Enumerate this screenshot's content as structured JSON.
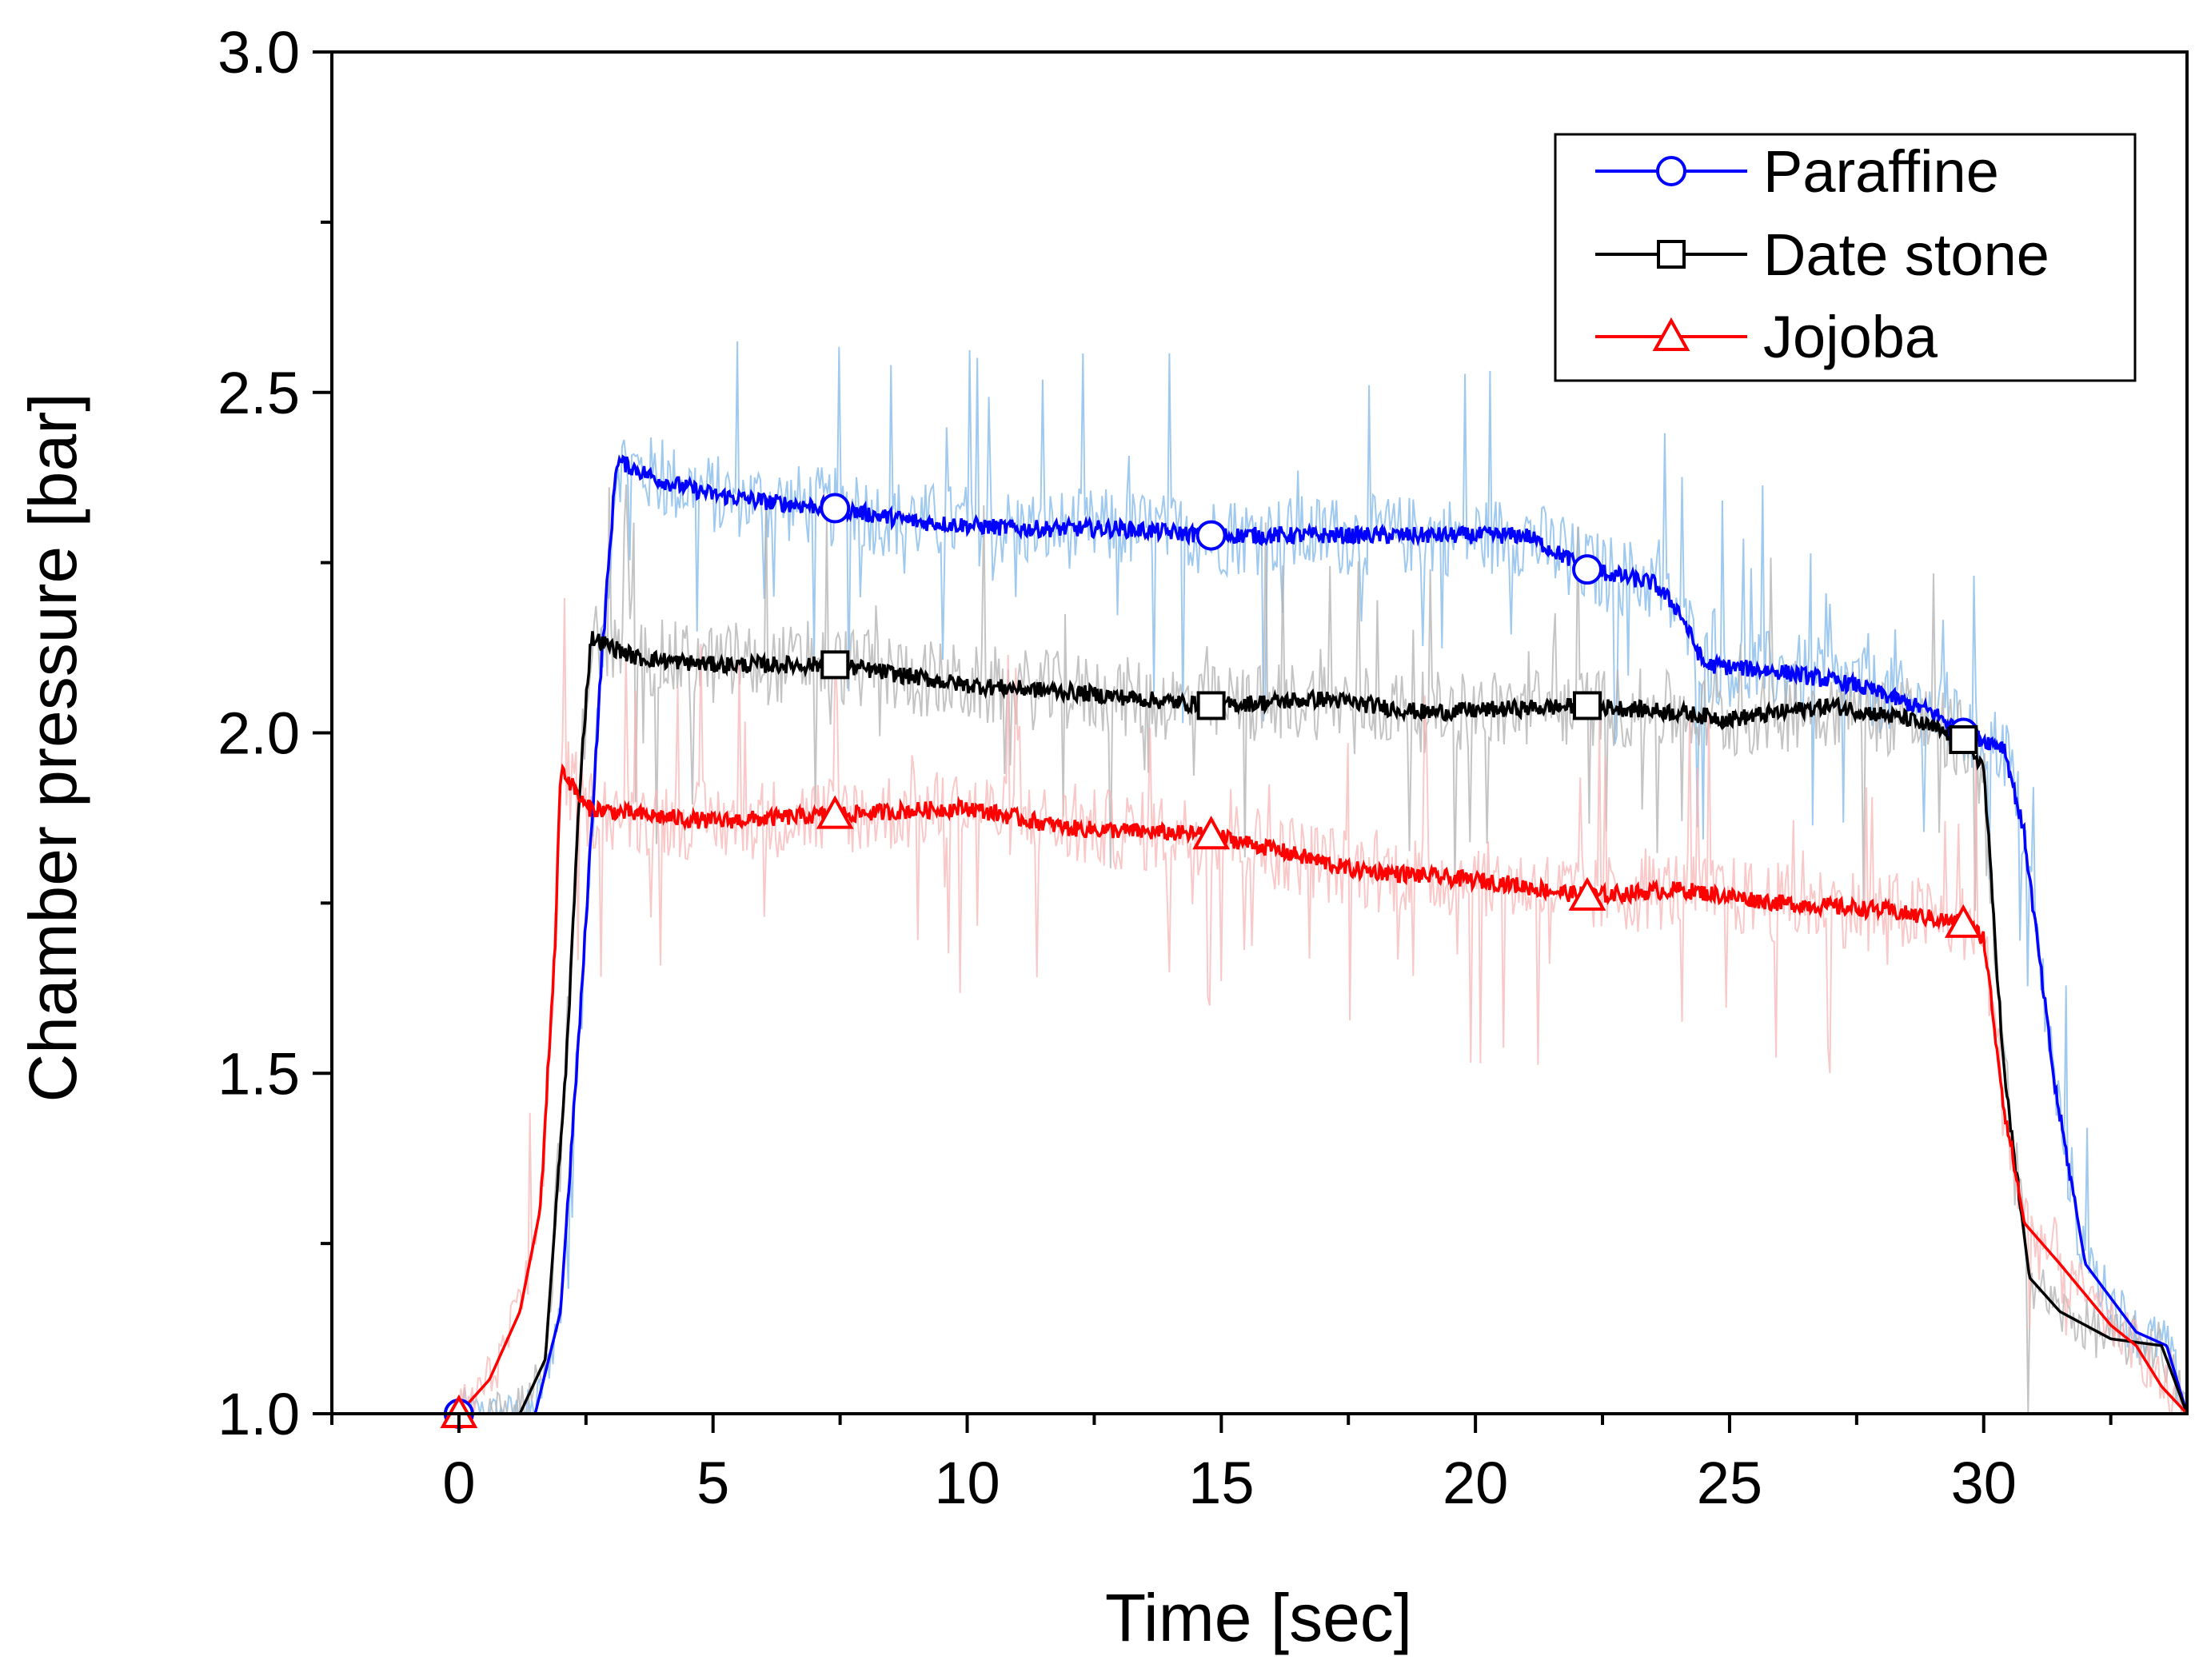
{
  "chart_data": {
    "type": "line",
    "title": "",
    "xlabel": "Time [sec]",
    "ylabel": "Chamber pressure [bar]",
    "xlim": [
      -2.5,
      34
    ],
    "ylim": [
      1.0,
      3.0
    ],
    "xticks": [
      0,
      5,
      10,
      15,
      20,
      25,
      30
    ],
    "yticks": [
      1.0,
      1.5,
      2.0,
      2.5,
      3.0
    ],
    "xtick_labels": [
      "0",
      "5",
      "10",
      "15",
      "20",
      "25",
      "30"
    ],
    "ytick_labels": [
      "1.0",
      "1.5",
      "2.0",
      "2.5",
      "3.0"
    ],
    "x_minor_step": 2.5,
    "y_minor_step": 0.25,
    "grid": false,
    "legend_position": "top-right",
    "series": [
      {
        "name": "Paraffine",
        "color": "#0000ff",
        "noise_color": "#7fb7e8",
        "marker": "circle",
        "points": [
          [
            0,
            1.0
          ],
          [
            0.8,
            0.99
          ],
          [
            1.5,
            1.0
          ],
          [
            2.0,
            1.15
          ],
          [
            2.4,
            1.6
          ],
          [
            2.8,
            2.1
          ],
          [
            3.1,
            2.4
          ],
          [
            4,
            2.37
          ],
          [
            5,
            2.35
          ],
          [
            6,
            2.34
          ],
          [
            7.4,
            2.33
          ],
          [
            9,
            2.31
          ],
          [
            11,
            2.3
          ],
          [
            13,
            2.3
          ],
          [
            14.8,
            2.29
          ],
          [
            17,
            2.29
          ],
          [
            19,
            2.29
          ],
          [
            21,
            2.29
          ],
          [
            22.2,
            2.24
          ],
          [
            23.5,
            2.22
          ],
          [
            24,
            2.18
          ],
          [
            24.5,
            2.1
          ],
          [
            26,
            2.09
          ],
          [
            27.5,
            2.07
          ],
          [
            29,
            2.03
          ],
          [
            29.6,
            2.0
          ],
          [
            30.4,
            1.98
          ],
          [
            30.8,
            1.85
          ],
          [
            31.4,
            1.48
          ],
          [
            32,
            1.22
          ],
          [
            33,
            1.12
          ],
          [
            33.6,
            1.1
          ],
          [
            34,
            1.0
          ]
        ],
        "markers_x": [
          0,
          7.4,
          14.8,
          22.2,
          29.6
        ]
      },
      {
        "name": "Date stone",
        "color": "#000000",
        "noise_color": "#b0b0b0",
        "marker": "square",
        "points": [
          [
            0.5,
            1.0
          ],
          [
            1.2,
            1.0
          ],
          [
            1.7,
            1.08
          ],
          [
            2.1,
            1.5
          ],
          [
            2.4,
            1.95
          ],
          [
            2.6,
            2.14
          ],
          [
            3.5,
            2.11
          ],
          [
            5,
            2.1
          ],
          [
            7.4,
            2.1
          ],
          [
            10,
            2.07
          ],
          [
            12,
            2.06
          ],
          [
            14.8,
            2.04
          ],
          [
            17,
            2.05
          ],
          [
            19,
            2.03
          ],
          [
            22.2,
            2.04
          ],
          [
            24,
            2.03
          ],
          [
            25,
            2.02
          ],
          [
            27,
            2.04
          ],
          [
            28.5,
            2.02
          ],
          [
            29.6,
            1.99
          ],
          [
            30.0,
            1.95
          ],
          [
            30.4,
            1.5
          ],
          [
            30.9,
            1.2
          ],
          [
            31.5,
            1.15
          ],
          [
            32.5,
            1.11
          ],
          [
            33.5,
            1.1
          ],
          [
            34,
            1.0
          ]
        ],
        "markers_x": [
          7.4,
          14.8,
          22.2,
          29.6
        ]
      },
      {
        "name": "Jojoba",
        "color": "#ff0000",
        "noise_color": "#f7b5b5",
        "marker": "triangle",
        "points": [
          [
            0,
            1.0
          ],
          [
            0.6,
            1.05
          ],
          [
            1.2,
            1.15
          ],
          [
            1.6,
            1.3
          ],
          [
            1.9,
            1.7
          ],
          [
            2.0,
            1.95
          ],
          [
            2.5,
            1.89
          ],
          [
            3.5,
            1.88
          ],
          [
            5,
            1.87
          ],
          [
            7.4,
            1.88
          ],
          [
            10,
            1.89
          ],
          [
            12,
            1.86
          ],
          [
            14.8,
            1.85
          ],
          [
            16,
            1.83
          ],
          [
            17.5,
            1.8
          ],
          [
            19,
            1.79
          ],
          [
            20.5,
            1.78
          ],
          [
            22.2,
            1.76
          ],
          [
            24,
            1.77
          ],
          [
            26,
            1.75
          ],
          [
            28,
            1.74
          ],
          [
            29.6,
            1.72
          ],
          [
            30,
            1.7
          ],
          [
            30.4,
            1.45
          ],
          [
            30.8,
            1.28
          ],
          [
            31.5,
            1.22
          ],
          [
            32.5,
            1.13
          ],
          [
            33,
            1.1
          ],
          [
            33.5,
            1.04
          ],
          [
            34,
            1.0
          ]
        ],
        "markers_x": [
          0,
          7.4,
          14.8,
          22.2,
          29.6
        ]
      }
    ]
  }
}
